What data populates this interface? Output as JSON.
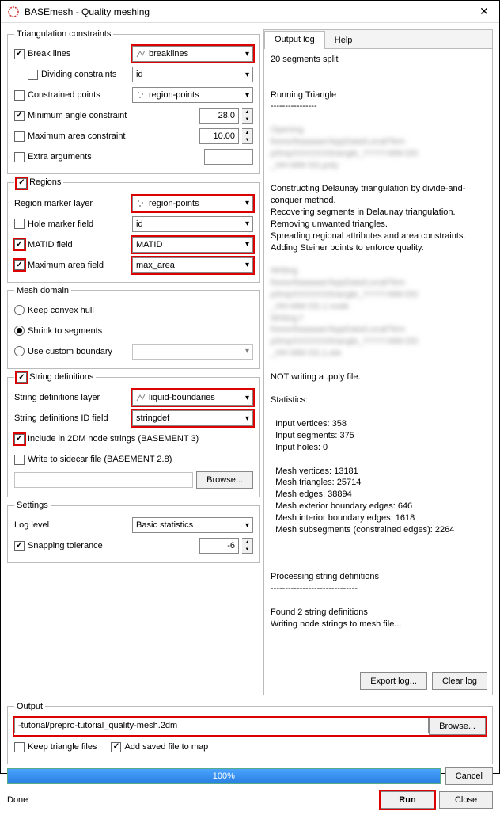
{
  "window": {
    "title": "BASEmesh - Quality meshing"
  },
  "triangulation": {
    "legend": "Triangulation constraints",
    "break_lines": {
      "label": "Break lines",
      "checked": true,
      "value": "breaklines",
      "highlight": true
    },
    "dividing": {
      "label": "Dividing constraints",
      "checked": false,
      "value": "id"
    },
    "constrained_points": {
      "label": "Constrained points",
      "checked": false,
      "value": "region-points"
    },
    "min_angle": {
      "label": "Minimum angle constraint",
      "checked": true,
      "value": "28.0"
    },
    "max_area": {
      "label": "Maximum area constraint",
      "checked": false,
      "value": "10.00"
    },
    "extra_args": {
      "label": "Extra arguments",
      "checked": false,
      "value": ""
    }
  },
  "regions": {
    "legend": "Regions",
    "highlight_legend": true,
    "marker_layer": {
      "label": "Region marker layer",
      "value": "region-points",
      "highlight": true
    },
    "hole_marker": {
      "label": "Hole marker field",
      "checked": false,
      "value": "id"
    },
    "matid": {
      "label": "MATID field",
      "checked": true,
      "value": "MATID",
      "highlight": true
    },
    "max_area_field": {
      "label": "Maximum area field",
      "checked": true,
      "value": "max_area",
      "highlight": true
    }
  },
  "mesh_domain": {
    "legend": "Mesh domain",
    "keep_convex": "Keep convex hull",
    "shrink": "Shrink to segments",
    "custom": "Use custom boundary",
    "selected": 1
  },
  "stringdefs": {
    "legend": "String definitions",
    "highlight_legend": true,
    "layer": {
      "label": "String definitions layer",
      "value": "liquid-boundaries",
      "highlight": true
    },
    "id_field": {
      "label": "String definitions ID field",
      "value": "stringdef",
      "highlight": true
    },
    "include_2dm": {
      "label": "Include in 2DM node strings (BASEMENT 3)",
      "checked": true,
      "highlight": true
    },
    "write_sidecar": {
      "label": "Write to sidecar file (BASEMENT 2.8)",
      "checked": false
    },
    "browse": "Browse..."
  },
  "settings": {
    "legend": "Settings",
    "log_level": {
      "label": "Log level",
      "value": "Basic statistics"
    },
    "snapping": {
      "label": "Snapping tolerance",
      "checked": true,
      "value": "-6"
    }
  },
  "output": {
    "legend": "Output",
    "path": "-tutorial/prepro-tutorial_quality-mesh.2dm",
    "browse": "Browse...",
    "highlight": true,
    "keep_triangle": {
      "label": "Keep triangle files",
      "checked": false
    },
    "add_saved": {
      "label": "Add saved file to map",
      "checked": true
    }
  },
  "tabs": {
    "output_log": "Output log",
    "help": "Help",
    "active": 0
  },
  "log": {
    "lines": [
      "20 segments split",
      "",
      "",
      "Running Triangle",
      "----------------",
      ""
    ],
    "blurred1": "Opening\nfoooo/baaaaar/AppData/Local/Tem\np/tmpXXXXXX/triangle_YYYY-MM-DD\n_HH-MM-SS.poly",
    "lines2": [
      "",
      "Constructing Delaunay triangulation by divide-and-conquer method.",
      "Recovering segments in Delaunay triangulation.",
      "Removing unwanted triangles.",
      "Spreading regional attributes and area constraints.",
      "Adding Steiner points to enforce quality.",
      ""
    ],
    "blurred2": "Writing\nfoooo/baaaaar/AppData/Local/Tem\np/tmpXXXXXX/triangle_YYYY-MM-DD\n_HH-MM-SS.1.node\nWriting f\nfoooo/baaaaar/AppData/Local/Tem\np/tmpXXXXXX/triangle_YYYY-MM-DD\n_HH-MM-SS.1.ele",
    "lines3": [
      "",
      "NOT writing a .poly file.",
      "",
      "Statistics:",
      "",
      "  Input vertices: 358",
      "  Input segments: 375",
      "  Input holes: 0",
      "",
      "  Mesh vertices: 13181",
      "  Mesh triangles: 25714",
      "  Mesh edges: 38894",
      "  Mesh exterior boundary edges: 646",
      "  Mesh interior boundary edges: 1618",
      "  Mesh subsegments (constrained edges): 2264",
      "",
      "",
      "",
      "Processing string definitions",
      "------------------------------",
      "",
      "Found 2 string definitions",
      "Writing node strings to mesh file..."
    ],
    "export": "Export log...",
    "clear": "Clear log"
  },
  "progress": {
    "text": "100%",
    "cancel": "Cancel"
  },
  "footer": {
    "status": "Done",
    "run": "Run",
    "close": "Close",
    "run_highlight": true
  },
  "colors": {
    "highlight": "#d00000",
    "progress_bg": "#2a7fe0"
  }
}
